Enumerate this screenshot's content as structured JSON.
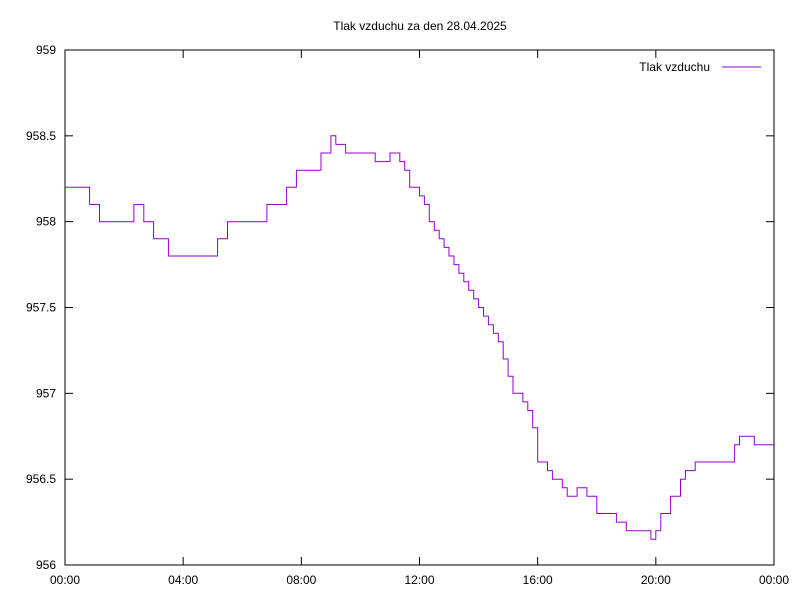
{
  "chart_data": {
    "type": "line",
    "title": "Tlak vzduchu za den 28.04.2025",
    "xlabel": "",
    "ylabel": "",
    "xlim": [
      "00:00",
      "24:00"
    ],
    "ylim": [
      956,
      959
    ],
    "x_ticks": [
      "00:00",
      "04:00",
      "08:00",
      "12:00",
      "16:00",
      "20:00",
      "00:00"
    ],
    "y_ticks": [
      "956",
      "956.5",
      "957",
      "957.5",
      "958",
      "958.5",
      "959"
    ],
    "grid": false,
    "legend": "top-right",
    "series": [
      {
        "name": "Tlak vzduchu",
        "color": "#9400d3",
        "x": [
          "00:00",
          "00:40",
          "00:50",
          "01:00",
          "01:10",
          "01:30",
          "02:00",
          "02:20",
          "02:40",
          "02:50",
          "03:00",
          "03:20",
          "03:30",
          "03:40",
          "04:00",
          "04:30",
          "05:00",
          "05:10",
          "05:20",
          "05:30",
          "06:00",
          "06:30",
          "06:50",
          "07:00",
          "07:20",
          "07:30",
          "07:40",
          "07:50",
          "08:00",
          "08:30",
          "08:40",
          "08:50",
          "09:00",
          "09:10",
          "09:30",
          "10:00",
          "10:30",
          "11:00",
          "11:20",
          "11:30",
          "11:40",
          "12:00",
          "12:10",
          "12:20",
          "12:30",
          "12:40",
          "12:50",
          "13:00",
          "13:10",
          "13:20",
          "13:30",
          "13:40",
          "13:50",
          "14:00",
          "14:10",
          "14:20",
          "14:30",
          "14:40",
          "14:50",
          "15:00",
          "15:10",
          "15:20",
          "15:30",
          "15:40",
          "15:50",
          "16:00",
          "16:20",
          "16:30",
          "16:40",
          "16:50",
          "17:00",
          "17:20",
          "17:40",
          "18:00",
          "18:20",
          "18:40",
          "19:00",
          "19:20",
          "19:40",
          "19:50",
          "20:00",
          "20:10",
          "20:30",
          "20:50",
          "21:00",
          "21:20",
          "21:30",
          "21:40",
          "22:00",
          "22:40",
          "22:50",
          "23:00",
          "23:20",
          "23:40",
          "24:00"
        ],
        "values": [
          958.2,
          958.2,
          958.1,
          958.1,
          958.0,
          958.0,
          958.0,
          958.1,
          958.0,
          958.0,
          957.9,
          957.9,
          957.8,
          957.8,
          957.8,
          957.8,
          957.8,
          957.9,
          957.9,
          958.0,
          958.0,
          958.0,
          958.1,
          958.1,
          958.1,
          958.2,
          958.2,
          958.3,
          958.3,
          958.3,
          958.4,
          958.4,
          958.5,
          958.45,
          958.4,
          958.4,
          958.35,
          958.4,
          958.35,
          958.3,
          958.2,
          958.15,
          958.1,
          958.0,
          957.95,
          957.9,
          957.85,
          957.8,
          957.75,
          957.7,
          957.65,
          957.6,
          957.55,
          957.5,
          957.45,
          957.4,
          957.35,
          957.3,
          957.2,
          957.1,
          957.0,
          957.0,
          956.95,
          956.9,
          956.8,
          956.6,
          956.55,
          956.5,
          956.5,
          956.45,
          956.4,
          956.45,
          956.4,
          956.3,
          956.3,
          956.25,
          956.2,
          956.2,
          956.2,
          956.15,
          956.2,
          956.3,
          956.4,
          956.5,
          956.55,
          956.6,
          956.6,
          956.6,
          956.6,
          956.7,
          956.75,
          956.75,
          956.7,
          956.7,
          956.7
        ]
      }
    ]
  }
}
